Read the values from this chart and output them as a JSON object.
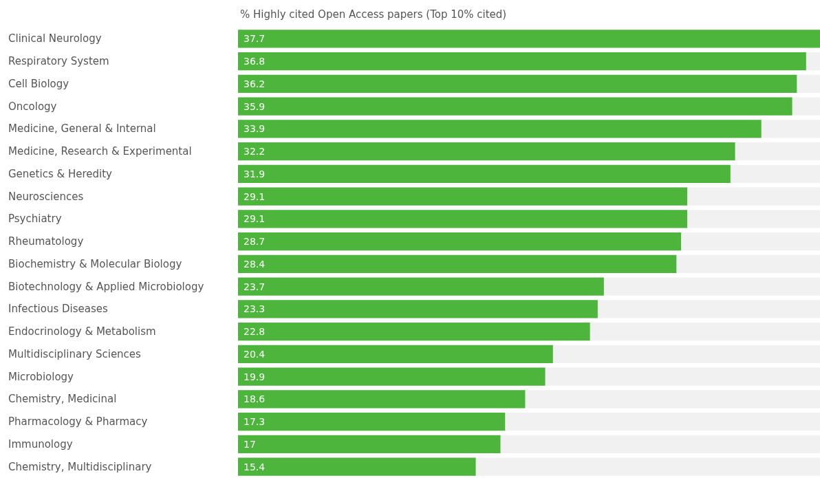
{
  "chart_data": {
    "type": "bar",
    "orientation": "horizontal",
    "title": "% Highly cited Open Access papers (Top 10% cited)",
    "categories": [
      "Clinical Neurology",
      "Respiratory System",
      "Cell Biology",
      "Oncology",
      "Medicine, General & Internal",
      "Medicine, Research & Experimental",
      "Genetics & Heredity",
      "Neurosciences",
      "Psychiatry",
      "Rheumatology",
      "Biochemistry & Molecular Biology",
      "Biotechnology & Applied Microbiology",
      "Infectious Diseases",
      "Endocrinology & Metabolism",
      "Multidisciplinary Sciences",
      "Microbiology",
      "Chemistry, Medicinal",
      "Pharmacology & Pharmacy",
      "Immunology",
      "Chemistry, Multidisciplinary"
    ],
    "values": [
      37.7,
      36.8,
      36.2,
      35.9,
      33.9,
      32.2,
      31.9,
      29.1,
      29.1,
      28.7,
      28.4,
      23.7,
      23.3,
      22.8,
      20.4,
      19.9,
      18.6,
      17.3,
      17,
      15.4
    ],
    "color": "#4db53c",
    "data_labels": true,
    "tick_labels": "y"
  }
}
